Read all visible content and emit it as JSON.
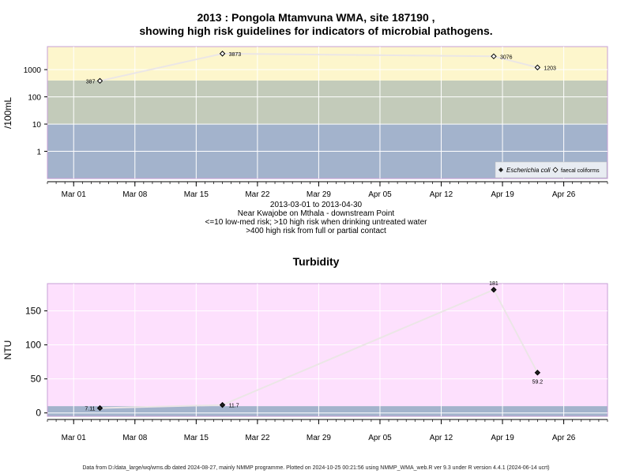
{
  "chart_data": [
    {
      "type": "line",
      "title_line1": "2013 : Pongola Mtamvuna WMA, site 187190 ,",
      "title_line2": "showing high risk guidelines for indicators of microbial pathogens.",
      "ylabel": "/100mL",
      "y_scale": "log",
      "yticks": [
        1,
        10,
        100,
        1000
      ],
      "ytick_labels": [
        "1",
        "10",
        "100",
        "1000"
      ],
      "ylim": [
        0.1,
        7000
      ],
      "x_ticks": [
        "Mar 01",
        "Mar 08",
        "Mar 15",
        "Mar 22",
        "Mar 29",
        "Apr 05",
        "Apr 12",
        "Apr 19",
        "Apr 26"
      ],
      "xlim": [
        "2013-02-26",
        "2013-05-01"
      ],
      "bands": [
        {
          "from": 0.1,
          "to": 10,
          "color": "#a3b3cc"
        },
        {
          "from": 10,
          "to": 400,
          "color": "#c3cbba"
        },
        {
          "from": 400,
          "to": 7000,
          "color": "#fdf6cc"
        }
      ],
      "series": [
        {
          "name": "faecal coliforms",
          "points": [
            {
              "x": "2013-03-04",
              "y": 387,
              "label": "387"
            },
            {
              "x": "2013-03-18",
              "y": 3873,
              "label": "3873"
            },
            {
              "x": "2013-04-18",
              "y": 3076,
              "label": "3076"
            },
            {
              "x": "2013-04-23",
              "y": 1203,
              "label": "1203"
            }
          ]
        }
      ],
      "legend": {
        "position": "bottom-right",
        "items": [
          "Escherichia coli",
          "faecal coliforms"
        ]
      },
      "grid": true
    },
    {
      "type": "line",
      "title": "Turbidity",
      "ylabel": "NTU",
      "yticks": [
        0,
        50,
        100,
        150
      ],
      "ylim": [
        -5,
        190
      ],
      "x_ticks": [
        "Mar 01",
        "Mar 08",
        "Mar 15",
        "Mar 22",
        "Mar 29",
        "Apr 05",
        "Apr 12",
        "Apr 19",
        "Apr 26"
      ],
      "xlim": [
        "2013-02-26",
        "2013-05-01"
      ],
      "bands": [
        {
          "from": -5,
          "to": 10,
          "color": "#a3b3cc"
        },
        {
          "from": 10,
          "to": 190,
          "color": "#fde0fd"
        }
      ],
      "series": [
        {
          "points": [
            {
              "x": "2013-03-04",
              "y": 7.11,
              "label": "7.11"
            },
            {
              "x": "2013-03-18",
              "y": 11.7,
              "label": "11.7"
            },
            {
              "x": "2013-04-18",
              "y": 181,
              "label": "181"
            },
            {
              "x": "2013-04-23",
              "y": 59.2,
              "label": "59.2"
            }
          ]
        }
      ],
      "grid": true
    }
  ],
  "subtitle": {
    "range": "2013-03-01 to 2013-04-30",
    "location": "Near Kwajobe on Mthala - downstream Point",
    "risk1": "<=10 low-med risk; >10 high risk when drinking untreated water",
    "risk2": ">400 high risk from full or partial contact"
  },
  "footer": "Data from D:/data_large/wq/wms.db dated 2024-08-27, mainly NMMP programme. Plotted on 2024-10-25 00:21:56 using NMMP_WMA_web.R ver 9.3 under R version 4.4.1 (2024-06-14 ucrt)"
}
